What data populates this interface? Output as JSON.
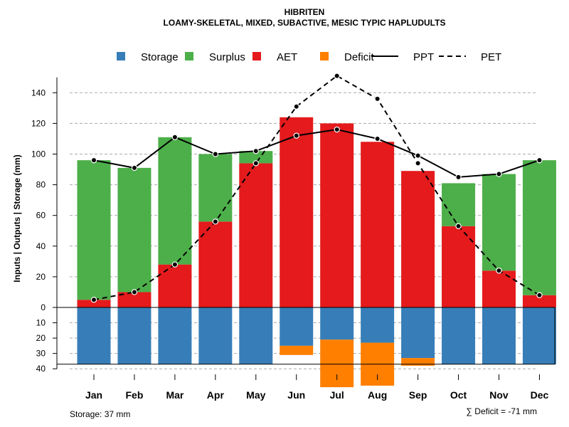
{
  "chart_data": {
    "type": "bar",
    "title": "HIBRITEN",
    "subtitle": "LOAMY-SKELETAL, MIXED, SUBACTIVE, MESIC TYPIC HAPLUDULTS",
    "ylabel": "Inputs | Outputs | Storage    (mm)",
    "ylim": [
      -40,
      150
    ],
    "upper_ticks": [
      0,
      20,
      40,
      60,
      80,
      100,
      120,
      140
    ],
    "lower_ticks": [
      10,
      20,
      30,
      40
    ],
    "categories": [
      "Jan",
      "Feb",
      "Mar",
      "Apr",
      "May",
      "Jun",
      "Jul",
      "Aug",
      "Sep",
      "Oct",
      "Nov",
      "Dec"
    ],
    "series": [
      {
        "name": "Storage",
        "color": "#377EB8",
        "values": [
          37,
          37,
          37,
          37,
          37,
          25,
          21,
          23,
          33,
          37,
          37,
          37
        ]
      },
      {
        "name": "Surplus",
        "color": "#4DAF4A",
        "values": [
          91,
          81,
          83,
          44,
          8,
          0,
          0,
          0,
          0,
          28,
          63,
          88
        ]
      },
      {
        "name": "AET",
        "color": "#E41A1C",
        "values": [
          5,
          10,
          28,
          56,
          94,
          124,
          120,
          108,
          89,
          53,
          24,
          8
        ]
      },
      {
        "name": "Deficit",
        "color": "#FF7F00",
        "values": [
          0,
          0,
          0,
          0,
          0,
          6,
          31,
          28,
          5,
          0,
          0,
          0
        ]
      },
      {
        "name": "PPT",
        "style": "solid",
        "values": [
          96,
          91,
          111,
          100,
          102,
          112,
          116,
          110,
          99,
          85,
          87,
          96
        ]
      },
      {
        "name": "PET",
        "style": "dashed",
        "values": [
          5,
          10,
          28,
          56,
          94,
          131,
          151,
          136,
          94,
          53,
          24,
          8
        ]
      }
    ],
    "legend": [
      "Storage",
      "Surplus",
      "AET",
      "Deficit",
      "PPT",
      "PET"
    ],
    "legend_position": "top",
    "grid": true,
    "storage_note": "Storage: 37 mm",
    "deficit_note": "∑ Deficit = -71 mm"
  }
}
